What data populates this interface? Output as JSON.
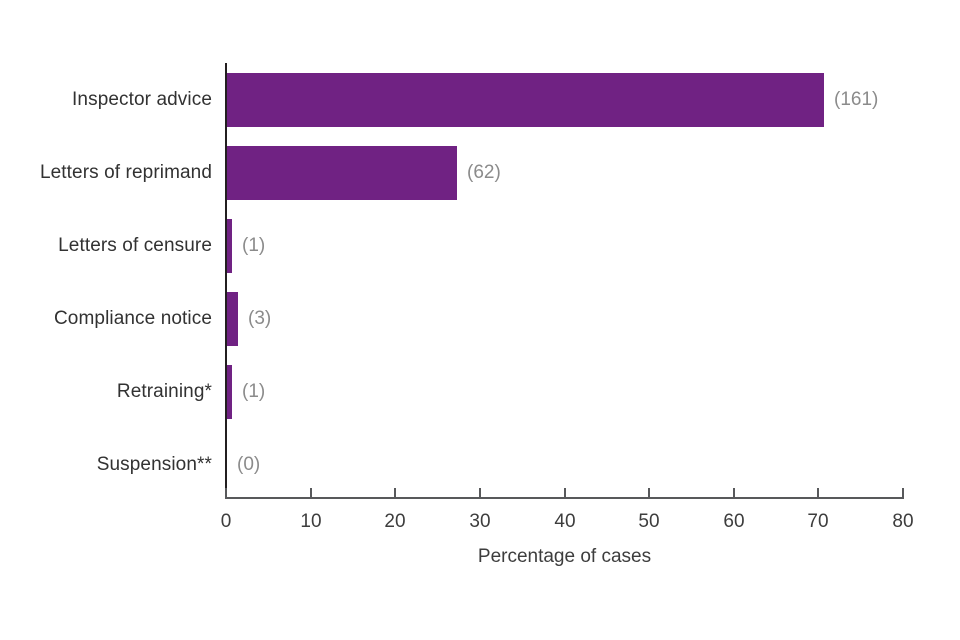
{
  "chart_data": {
    "type": "bar",
    "orientation": "horizontal",
    "title": "",
    "xlabel": "Percentage of cases",
    "ylabel": "",
    "categories": [
      "Inspector advice",
      "Letters of reprimand",
      "Letters of censure",
      "Compliance notice",
      "Retraining*",
      "Suspension**"
    ],
    "series": [
      {
        "name": "Percentage of cases",
        "values_percent": [
          70.6,
          27.2,
          0.6,
          1.3,
          0.6,
          0
        ],
        "counts": [
          161,
          62,
          1,
          3,
          1,
          0
        ],
        "count_labels": [
          "(161)",
          "(62)",
          "(1)",
          "(3)",
          "(1)",
          "(0)"
        ]
      }
    ],
    "x_ticks": [
      0,
      10,
      20,
      30,
      40,
      50,
      60,
      70,
      80
    ],
    "xlim": [
      0,
      80
    ],
    "grid": false,
    "legend": false,
    "bar_color": "#702283",
    "value_label_color": "#8b8b8b",
    "category_label_color": "#323232",
    "tick_label_color": "#3d3d3d",
    "y_axis_line_color": "#231f20",
    "x_axis_line_color": "#58595b",
    "background_color": "#ffffff"
  }
}
